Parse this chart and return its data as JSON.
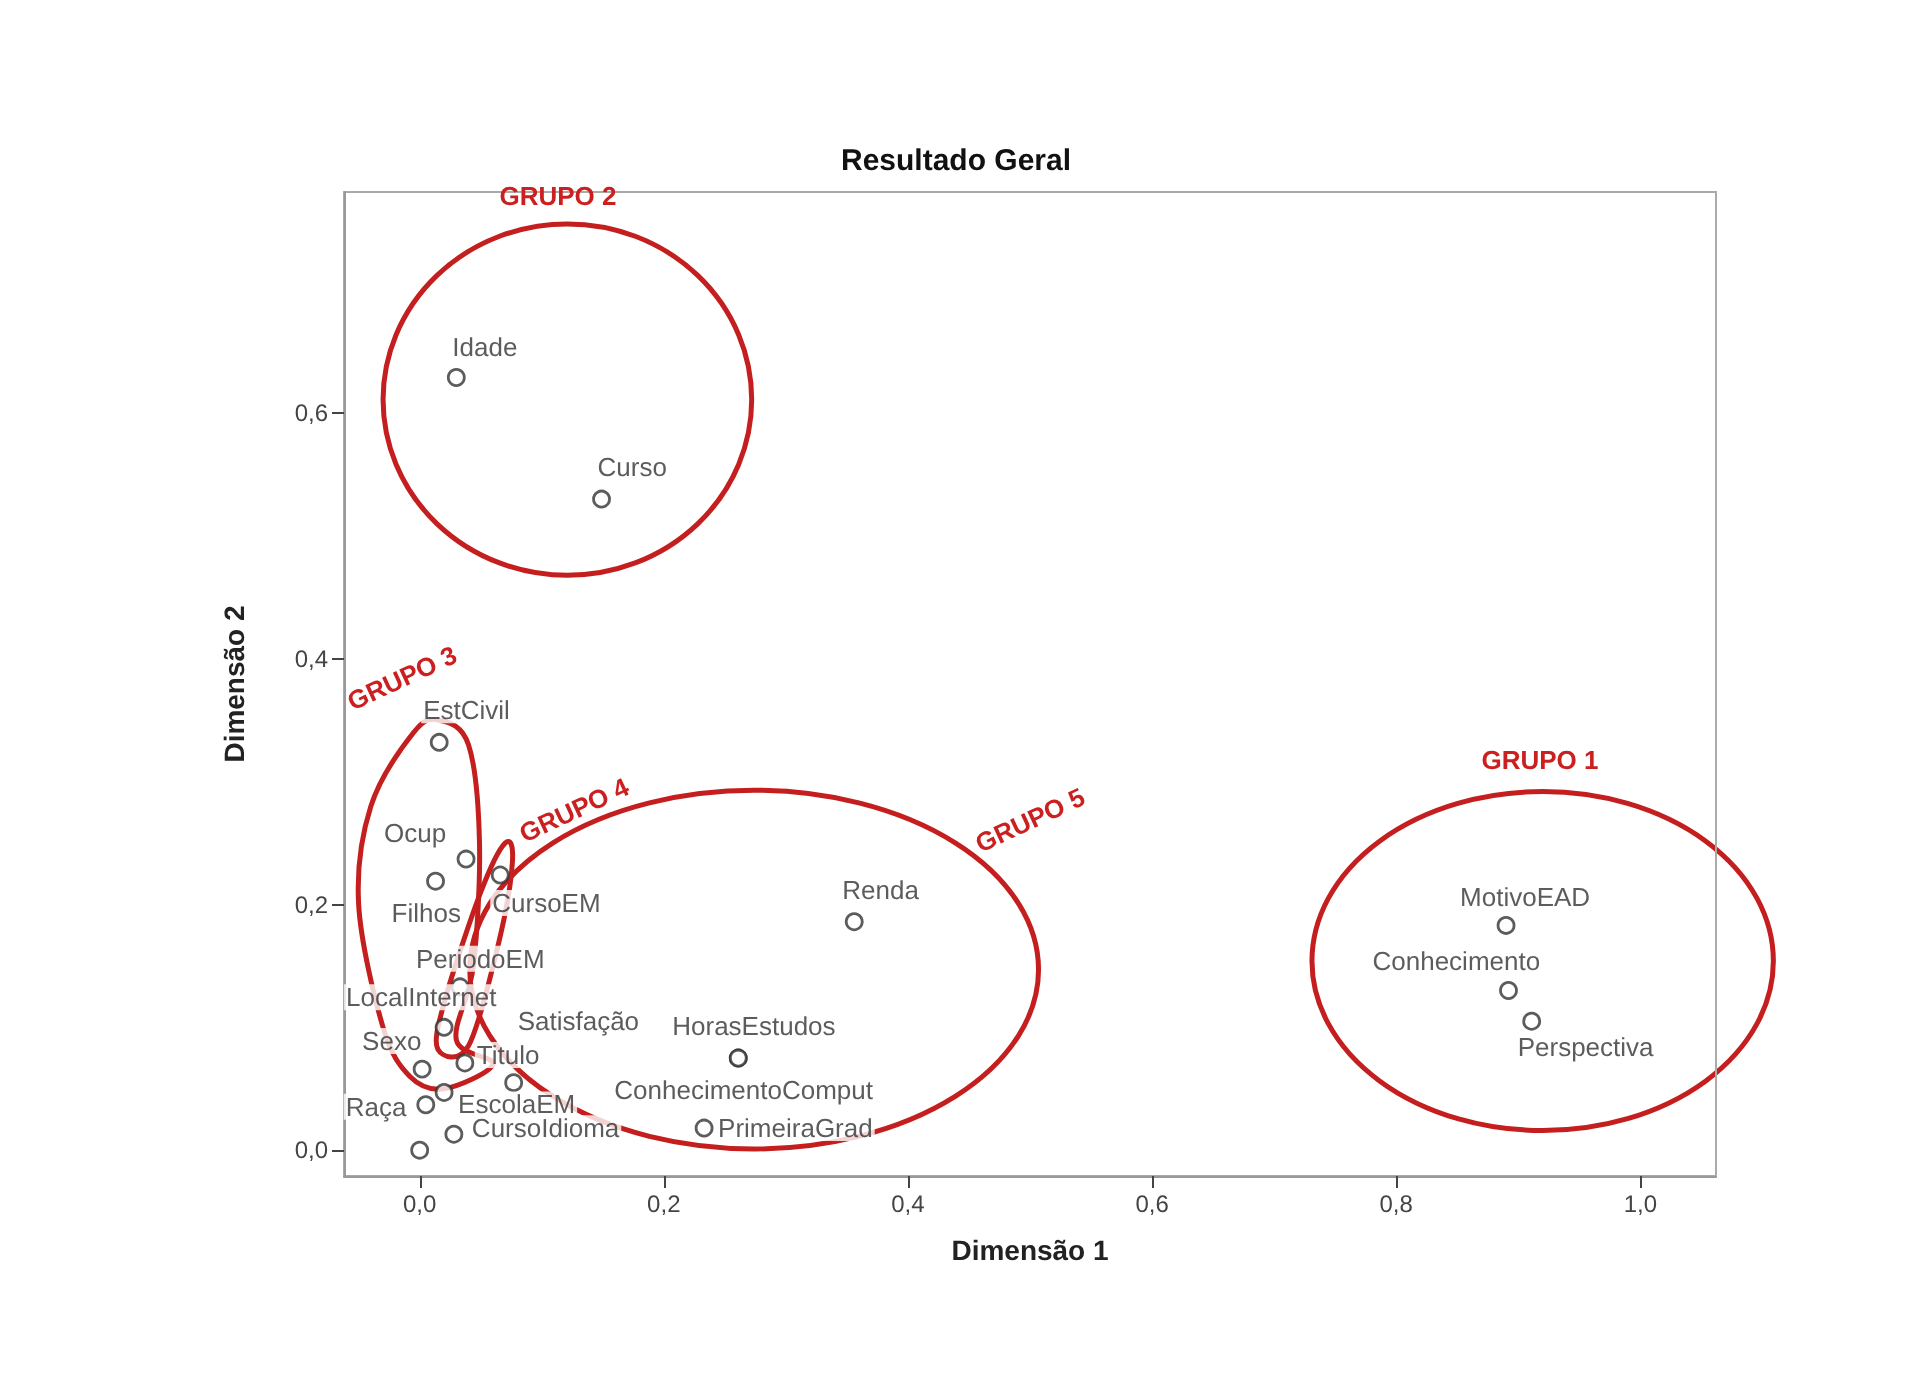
{
  "chart_data": {
    "type": "scatter",
    "title": "Resultado Geral",
    "xlabel": "Dimensão 1",
    "ylabel": "Dimensão 2",
    "series": [
      {
        "name": "Idade",
        "color": "#333333",
        "x": [
          0.03
        ],
        "values": [
          0.629
        ]
      },
      {
        "name": "Curso",
        "color": "#333333",
        "x": [
          0.149
        ],
        "values": [
          0.53
        ]
      },
      {
        "name": "EstCivil",
        "color": "#333333",
        "x": [
          0.016
        ],
        "values": [
          0.332
        ]
      },
      {
        "name": "Ocup",
        "color": "#333333",
        "x": [
          0.038
        ],
        "values": [
          0.237
        ]
      },
      {
        "name": "Filhos",
        "color": "#333333",
        "x": [
          0.013
        ],
        "values": [
          0.219
        ]
      },
      {
        "name": "CursoEM",
        "color": "#333333",
        "x": [
          0.066
        ],
        "values": [
          0.224
        ]
      },
      {
        "name": "PeriodoEM",
        "color": "#333333",
        "x": [
          0.033
        ],
        "values": [
          0.133
        ]
      },
      {
        "name": "LocalInternet",
        "color": "#333333",
        "x": [
          0.02
        ],
        "values": [
          0.1
        ]
      },
      {
        "name": "Sexo",
        "color": "#333333",
        "x": [
          0.002
        ],
        "values": [
          0.066
        ]
      },
      {
        "name": "Titulo",
        "color": "#333333",
        "x": [
          0.037
        ],
        "values": [
          0.071
        ]
      },
      {
        "name": "Satisfação",
        "color": "#333333",
        "x": [
          0.077
        ],
        "values": [
          0.055
        ]
      },
      {
        "name": "Raça",
        "color": "#333333",
        "x": [
          0.005
        ],
        "values": [
          0.037
        ]
      },
      {
        "name": "EscolaEM",
        "color": "#333333",
        "x": [
          0.02
        ],
        "values": [
          0.047
        ]
      },
      {
        "name": "CursoIdioma",
        "color": "#333333",
        "x": [
          0.028
        ],
        "values": [
          0.013
        ]
      },
      {
        "name": "HorasEstudos",
        "color": "#333333",
        "x": [
          0.261
        ],
        "values": [
          0.075
        ]
      },
      {
        "name": "ConhecimentoComput",
        "color": "#333333",
        "x": [
          0.261
        ],
        "values": [
          0.075
        ]
      },
      {
        "name": "PrimeiraGrad",
        "color": "#333333",
        "x": [
          0.233
        ],
        "values": [
          0.018
        ]
      },
      {
        "name": "Renda",
        "color": "#333333",
        "x": [
          0.356
        ],
        "values": [
          0.186
        ]
      },
      {
        "name": "MotivoEAD",
        "color": "#333333",
        "x": [
          0.89
        ],
        "values": [
          0.183
        ]
      },
      {
        "name": "Conhecimento",
        "color": "#333333",
        "x": [
          0.892
        ],
        "values": [
          0.13
        ]
      },
      {
        "name": "Perspectiva",
        "color": "#333333",
        "x": [
          0.911
        ],
        "values": [
          0.105
        ]
      },
      {
        "color": "#333333",
        "x": [
          0.0
        ],
        "values": [
          0.0
        ]
      }
    ],
    "marker": "circle",
    "legend": false,
    "xlim": [
      -0.062,
      1.062
    ],
    "ylim": [
      -0.021,
      0.78
    ],
    "xticks": [
      {
        "value": 0,
        "label": "0,0"
      },
      {
        "value": 0.2,
        "label": "0,2"
      },
      {
        "value": 0.4,
        "label": "0,4"
      },
      {
        "value": 0.6,
        "label": "0,6"
      },
      {
        "value": 0.8,
        "label": "0,8"
      },
      {
        "value": 1.0,
        "label": "1,0"
      }
    ],
    "yticks": [
      {
        "value": 0,
        "label": "0,0"
      },
      {
        "value": 0.2,
        "label": "0,2"
      },
      {
        "value": 0.4,
        "label": "0,4"
      },
      {
        "value": 0.6,
        "label": "0,6"
      }
    ],
    "annotations": [
      "GRUPO 2",
      "GRUPO 1",
      "GRUPO 3",
      "GRUPO 4",
      "GRUPO 5"
    ]
  }
}
